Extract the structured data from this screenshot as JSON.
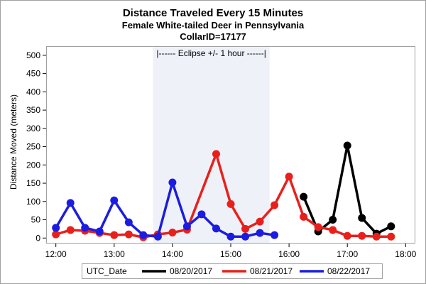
{
  "chart_data": {
    "type": "line",
    "title": "Distance Traveled Every 15 Minutes",
    "subtitle": "Female White-tailed Deer in Pennsylvania",
    "subtitle2": "CollarID=17177",
    "xlabel": "",
    "ylabel": "Distance Moved (meters)",
    "xlim": [
      "11:50",
      "18:10"
    ],
    "ylim": [
      -15,
      525
    ],
    "x_ticks": [
      "12:00",
      "13:00",
      "14:00",
      "15:00",
      "16:00",
      "17:00",
      "18:00"
    ],
    "y_ticks": [
      0,
      50,
      100,
      150,
      200,
      250,
      300,
      350,
      400,
      450,
      500
    ],
    "grid": false,
    "legend": {
      "title": "UTC_Date",
      "placement": "bottom"
    },
    "annotations": [
      {
        "type": "shaded_band",
        "text": "|------  Eclipse +/- 1 hour  ------|",
        "x_start": "13:40",
        "x_end": "15:40",
        "color": "#eef2f8"
      }
    ],
    "series": [
      {
        "name": "08/20/2017",
        "color": "#000000",
        "points": [
          {
            "x": "16:15",
            "y": 113
          },
          {
            "x": "16:30",
            "y": 18
          },
          {
            "x": "16:45",
            "y": 50
          },
          {
            "x": "17:00",
            "y": 253
          },
          {
            "x": "17:15",
            "y": 55
          },
          {
            "x": "17:30",
            "y": 12
          },
          {
            "x": "17:45",
            "y": 32
          }
        ]
      },
      {
        "name": "08/21/2017",
        "color": "#e8201c",
        "points": [
          {
            "x": "12:00",
            "y": 10
          },
          {
            "x": "12:15",
            "y": 22
          },
          {
            "x": "12:30",
            "y": 20
          },
          {
            "x": "12:45",
            "y": 14
          },
          {
            "x": "13:00",
            "y": 8
          },
          {
            "x": "13:15",
            "y": 10
          },
          {
            "x": "13:30",
            "y": 2
          },
          {
            "x": "13:45",
            "y": 10
          },
          {
            "x": "14:00",
            "y": 15
          },
          {
            "x": "14:15",
            "y": 23
          },
          {
            "x": "14:45",
            "y": 230
          },
          {
            "x": "15:00",
            "y": 93
          },
          {
            "x": "15:15",
            "y": 25
          },
          {
            "x": "15:30",
            "y": 45
          },
          {
            "x": "15:45",
            "y": 90
          },
          {
            "x": "16:00",
            "y": 168
          },
          {
            "x": "16:15",
            "y": 58
          },
          {
            "x": "16:30",
            "y": 30
          },
          {
            "x": "16:45",
            "y": 22
          },
          {
            "x": "17:00",
            "y": 6
          },
          {
            "x": "17:15",
            "y": 6
          },
          {
            "x": "17:30",
            "y": 4
          },
          {
            "x": "17:45",
            "y": 4
          }
        ]
      },
      {
        "name": "08/22/2017",
        "color": "#1c1ce0",
        "points": [
          {
            "x": "12:00",
            "y": 28
          },
          {
            "x": "12:15",
            "y": 96
          },
          {
            "x": "12:30",
            "y": 28
          },
          {
            "x": "12:45",
            "y": 18
          },
          {
            "x": "13:00",
            "y": 103
          },
          {
            "x": "13:15",
            "y": 43
          },
          {
            "x": "13:30",
            "y": 8
          },
          {
            "x": "13:45",
            "y": 4
          },
          {
            "x": "14:00",
            "y": 152
          },
          {
            "x": "14:15",
            "y": 32
          },
          {
            "x": "14:30",
            "y": 65
          },
          {
            "x": "14:45",
            "y": 26
          },
          {
            "x": "15:00",
            "y": 4
          },
          {
            "x": "15:15",
            "y": 4
          },
          {
            "x": "15:30",
            "y": 14
          },
          {
            "x": "15:45",
            "y": 8
          }
        ]
      }
    ]
  }
}
